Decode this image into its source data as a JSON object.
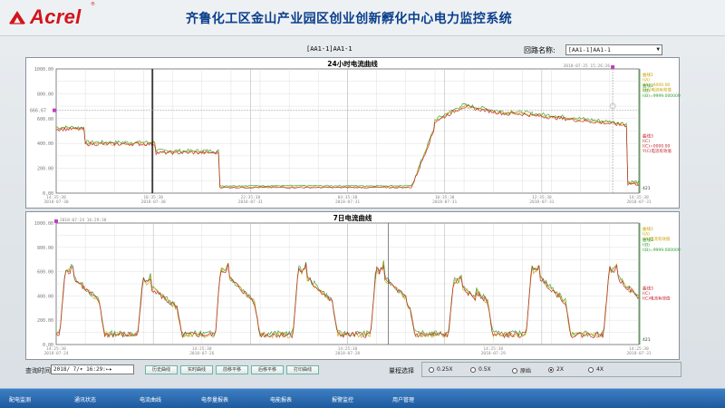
{
  "header": {
    "brand": "Acrel",
    "brand_reg": "®",
    "system_title": "齐鲁化工区金山产业园区创业创新孵化中心电力监控系统"
  },
  "loop": {
    "title": "[AA1-1]AA1-1",
    "select_label": "回路名称:",
    "select_value": "[AA1-1]AA1-1"
  },
  "chart24": {
    "title": "24小时电流曲线",
    "y_ticks": [
      "1000.00",
      "800.00",
      "600.00",
      "400.00",
      "200.00",
      "0.00"
    ],
    "marker_value": "666.67",
    "cursor_time": "2018-07-25 15:26:26",
    "x_ticks": [
      {
        "t": "14:35:38",
        "d": "2018-07-30"
      },
      {
        "t": "18:35:38",
        "d": "2018-07-30"
      },
      {
        "t": "22:35:38",
        "d": "2018-07-31"
      },
      {
        "t": "04:35:38",
        "d": "2018-07-31"
      },
      {
        "t": "10:35:38",
        "d": "2018-07-31"
      },
      {
        "t": "12:35:38",
        "d": "2018-07-31"
      },
      {
        "t": "14:35:38",
        "d": "2018-07-31"
      }
    ],
    "side_a": [
      "曲线1",
      "I(A)",
      "I(A)=0000.00",
      "Y(A)电流有效值"
    ],
    "side_b": [
      "曲线2",
      "I(B)",
      "I(B)=9999.0000000"
    ],
    "side_c": [
      "曲线3",
      "I(C)",
      "I(C)=0000.00",
      "Y(C)电流有效值"
    ],
    "side_end": "421"
  },
  "chart7": {
    "title": "7日电流曲线",
    "y_ticks": [
      "1000.00",
      "800.00",
      "600.00",
      "400.00",
      "200.00",
      "0.00"
    ],
    "cursor_time": "2018-07-24 16:29:38",
    "x_ticks": [
      {
        "t": "14:25:38",
        "d": "2018-07-24"
      },
      {
        "t": "14:25:38",
        "d": "2018-07-26"
      },
      {
        "t": "14:25:38",
        "d": "2018-07-28"
      },
      {
        "t": "14:25:38",
        "d": "2018-07-29"
      },
      {
        "t": "14:25:38",
        "d": "2018-07-31"
      }
    ],
    "side_a": [
      "曲线1",
      "I(A)",
      "I(A)电流有效值"
    ],
    "side_b": [
      "曲线2",
      "I(B)",
      "I(B)=9999.0000000"
    ],
    "side_c": [
      "曲线3",
      "I(C)",
      "I(C)电流有效值"
    ],
    "side_end": "421"
  },
  "query": {
    "label": "查询时间",
    "value": "2018/ 7/▾ 16:29:←▸",
    "buttons": [
      "历史曲线",
      "实时曲线",
      "前移平移",
      "后移平移",
      "打印曲线"
    ]
  },
  "scale": {
    "label": "量程选择",
    "options": [
      {
        "label": "0.25X",
        "checked": false
      },
      {
        "label": "0.5X",
        "checked": false
      },
      {
        "label": "原始",
        "checked": false
      },
      {
        "label": "2X",
        "checked": true
      },
      {
        "label": "4X",
        "checked": false
      }
    ]
  },
  "nav": [
    "配电监测",
    "通讯状态",
    "电流曲线",
    "电参量报表",
    "电能报表",
    "报警监控",
    "用户管理"
  ],
  "colors": {
    "title": "#0b3f8c",
    "brand": "#d2141c",
    "nav": "#1e5aa0",
    "phase_a": "#c8a000",
    "phase_b": "#2e9d2e",
    "phase_c": "#c0202a"
  }
}
